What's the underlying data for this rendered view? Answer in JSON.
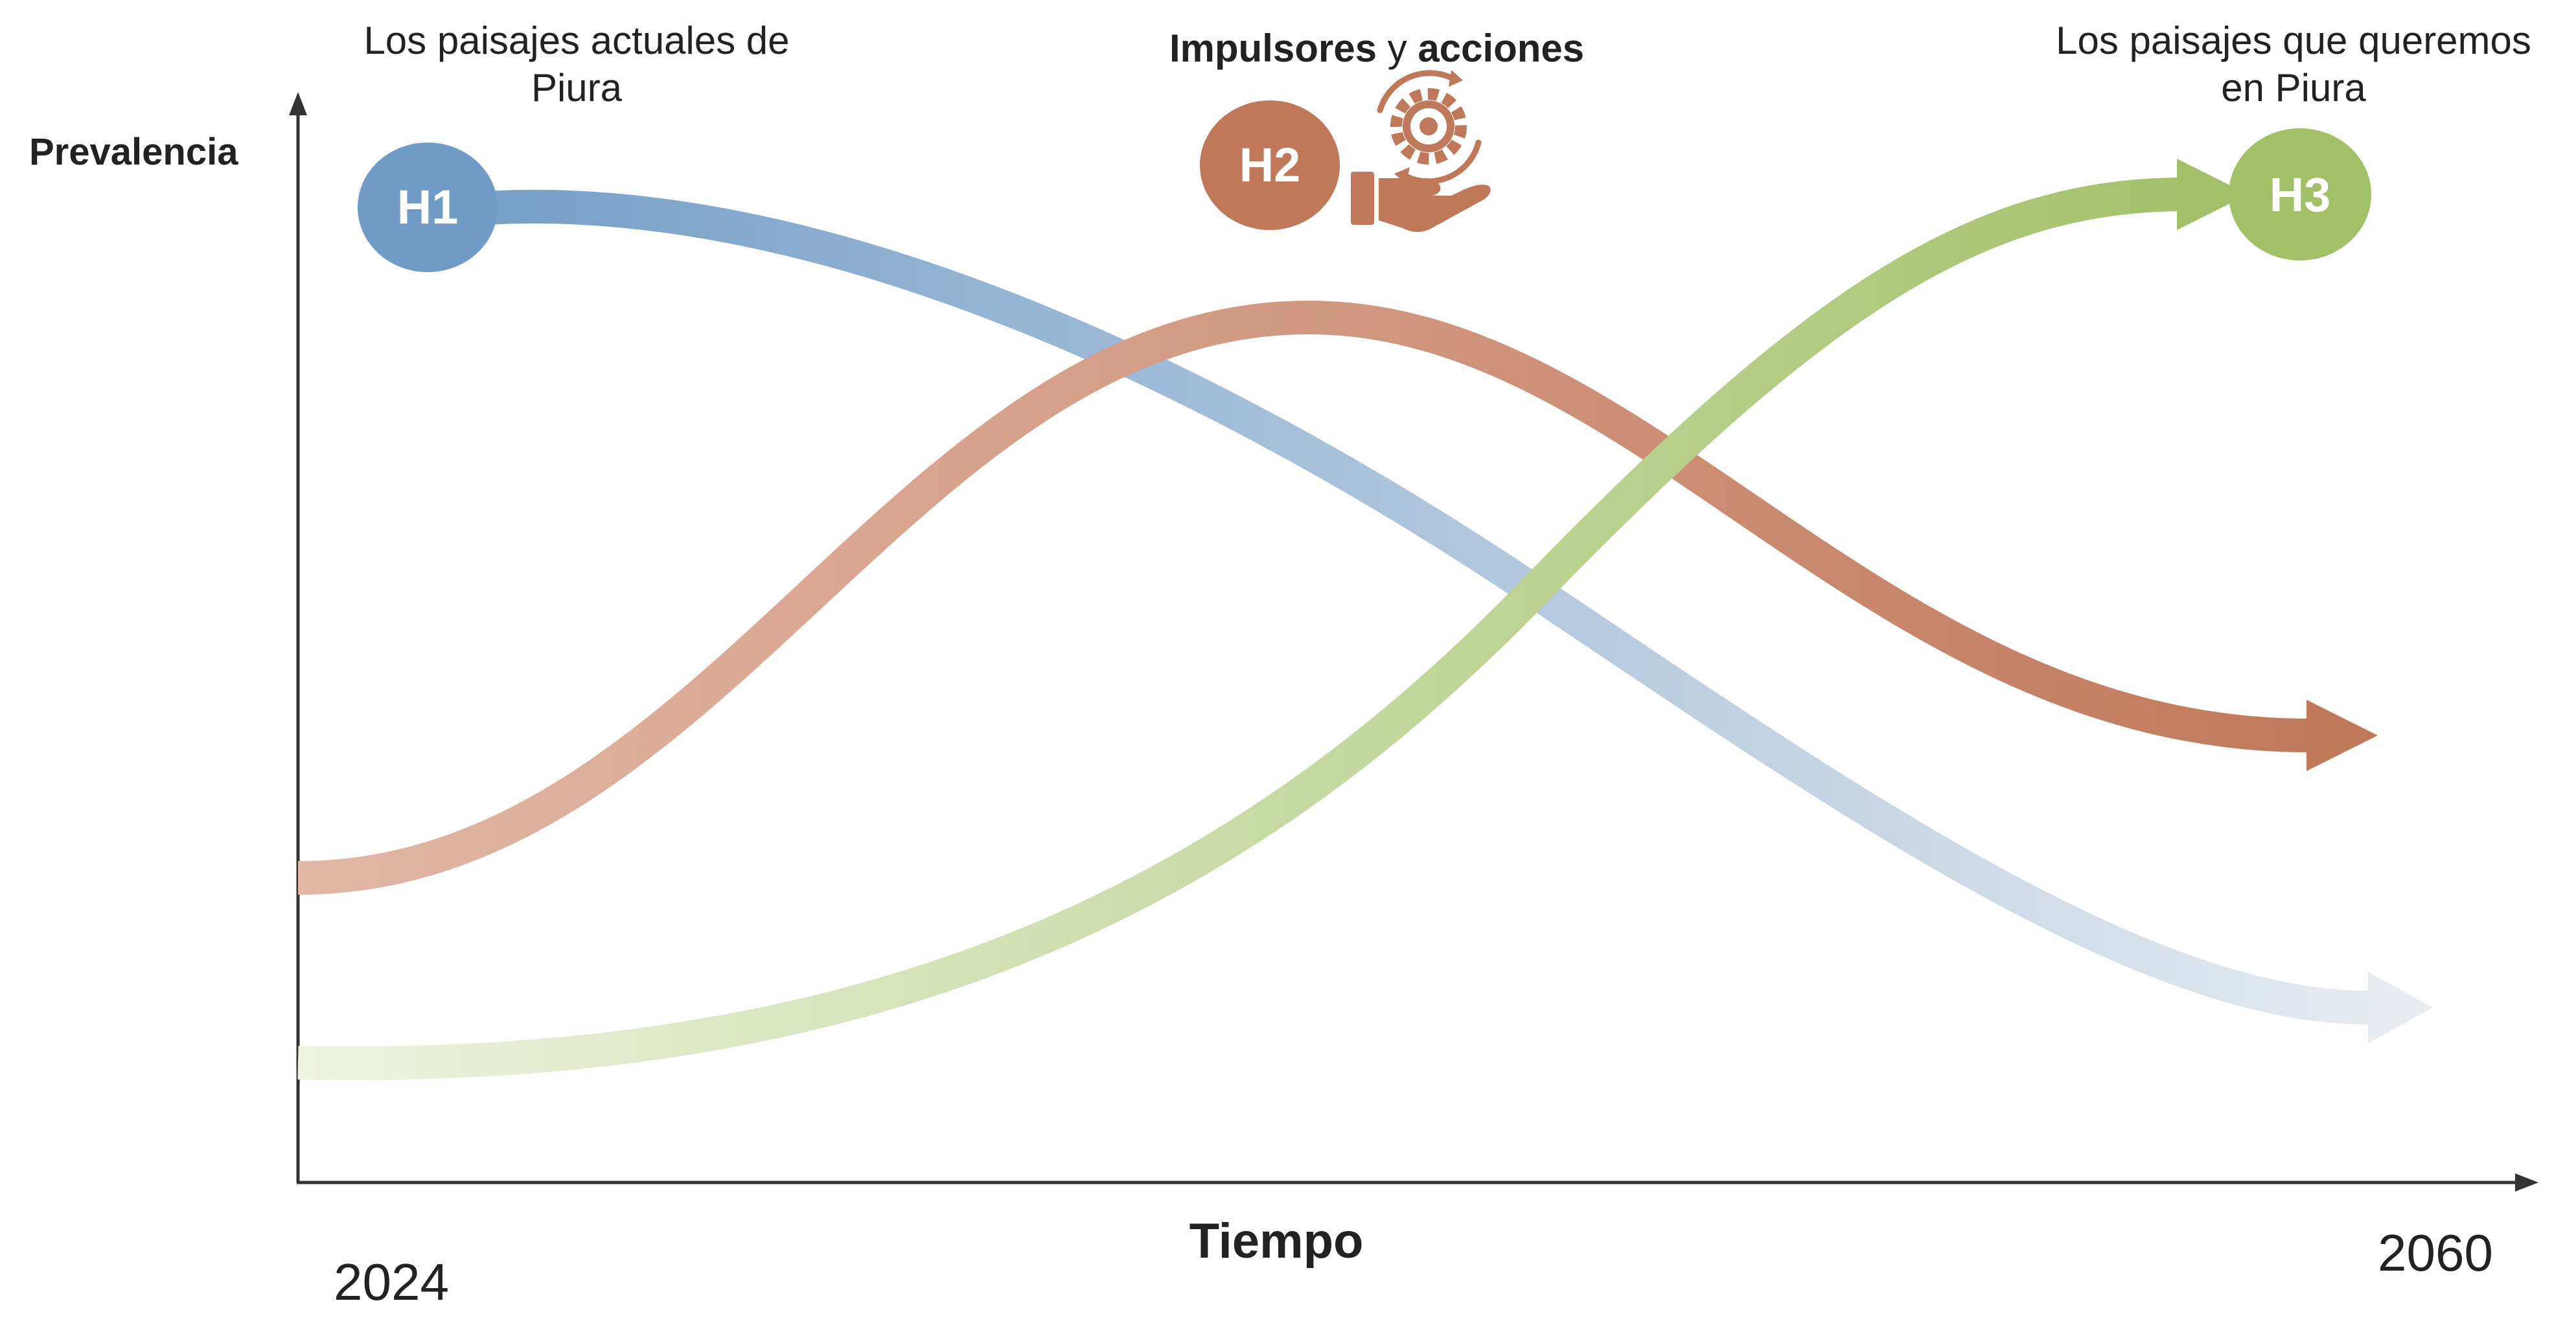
{
  "axes": {
    "y_label": "Prevalencia",
    "x_label": "Tiempo",
    "x_start": "2024",
    "x_end": "2060"
  },
  "horizons": {
    "h1": {
      "badge": "H1",
      "caption_line1": "Los paisajes actuales de",
      "caption_line2": "Piura",
      "color": "#6f9bc6"
    },
    "h2": {
      "badge": "H2",
      "caption_bold1": "Impulsores",
      "caption_mid": "y",
      "caption_bold2": "acciones",
      "color": "#c0785a",
      "icon": "hand-gear-icon"
    },
    "h3": {
      "badge": "H3",
      "caption_line1": "Los paisajes que queremos",
      "caption_line2": "en Piura",
      "color": "#a2c068"
    }
  },
  "colors": {
    "axis": "#333333",
    "h1_curve_light": "#e8ecf0",
    "h2_curve_light": "#e2b7a6",
    "h3_curve_light": "#eef3e0"
  }
}
